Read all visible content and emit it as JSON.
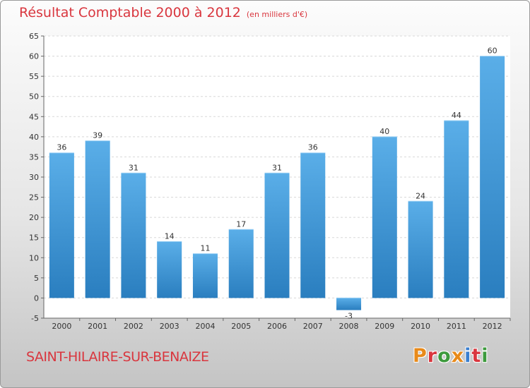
{
  "title": "Résultat Comptable 2000 à 2012",
  "subtitle": "(en milliers d'€)",
  "footer": {
    "commune": "SAINT-HILAIRE-SUR-BENAIZE",
    "logo": "Proxiti"
  },
  "colors": {
    "title": "#d9363e",
    "bar_light": "#5aaee8",
    "bar_dark": "#2a7ebf",
    "logo_letters": [
      "#e88a1a",
      "#d9363e",
      "#3d9a3d",
      "#e88a1a",
      "#3a7fd0",
      "#d9363e",
      "#3d9a3d"
    ]
  },
  "chart_data": {
    "type": "bar",
    "categories": [
      "2000",
      "2001",
      "2002",
      "2003",
      "2004",
      "2005",
      "2006",
      "2007",
      "2008",
      "2009",
      "2010",
      "2011",
      "2012"
    ],
    "values": [
      36,
      39,
      31,
      14,
      11,
      17,
      31,
      36,
      -3,
      40,
      24,
      44,
      60
    ],
    "ylim": [
      -5,
      65
    ],
    "yticks": [
      -5,
      0,
      5,
      10,
      15,
      20,
      25,
      30,
      35,
      40,
      45,
      50,
      55,
      60,
      65
    ],
    "grid": true,
    "data_labels": true
  }
}
